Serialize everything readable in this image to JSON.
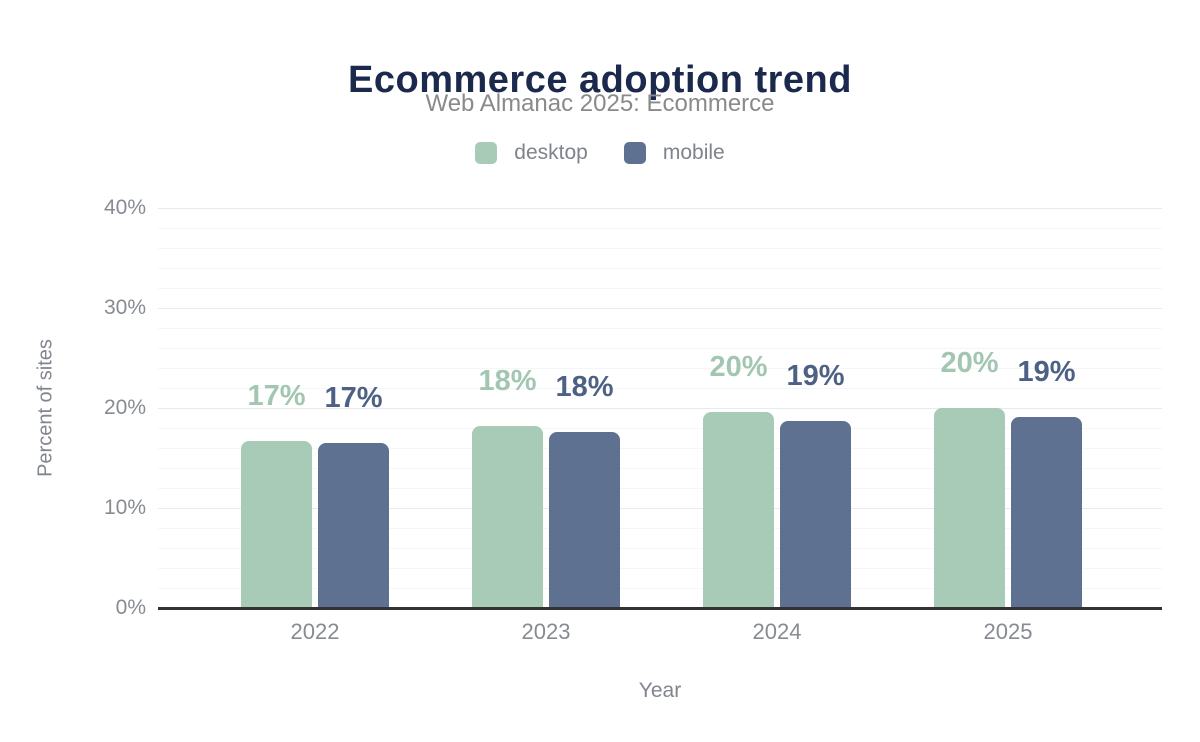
{
  "title": {
    "text": "Ecommerce adoption trend",
    "color": "#1b2a4c"
  },
  "subtitle": {
    "text": "Web Almanac 2025: Ecommerce",
    "color": "#8a8a8a"
  },
  "legend": {
    "items": [
      {
        "label": "desktop",
        "color": "#a8cbb8"
      },
      {
        "label": "mobile",
        "color": "#5e7190"
      }
    ]
  },
  "chart_data": {
    "type": "bar",
    "title": "Ecommerce adoption trend",
    "subtitle": "Web Almanac 2025: Ecommerce",
    "categories": [
      "2022",
      "2023",
      "2024",
      "2025"
    ],
    "series": [
      {
        "name": "desktop",
        "color": "#a8cbb8",
        "label_color": "#a2c6b1",
        "values": [
          16.7,
          18.2,
          19.6,
          20.0
        ],
        "data_labels": [
          "17%",
          "18%",
          "20%",
          "20%"
        ]
      },
      {
        "name": "mobile",
        "color": "#5e7190",
        "label_color": "#4d6185",
        "values": [
          16.5,
          17.6,
          18.7,
          19.1
        ],
        "data_labels": [
          "17%",
          "18%",
          "19%",
          "19%"
        ]
      }
    ],
    "xlabel": "Year",
    "ylabel": "Percent of sites",
    "ylim": [
      0,
      40
    ],
    "ytick_values": [
      0,
      10,
      20,
      30,
      40
    ],
    "ytick_labels": [
      "0%",
      "10%",
      "20%",
      "30%",
      "40%"
    ],
    "minor_grid_step_percent": 2,
    "grid": true,
    "legend_position": "top"
  },
  "colors": {
    "background": "#ffffff",
    "axis_line": "#323232",
    "major_grid": "#e8eaec",
    "minor_grid": "#f5f6f7",
    "axis_text": "#878b92",
    "axis_title_text": "#81858d"
  }
}
